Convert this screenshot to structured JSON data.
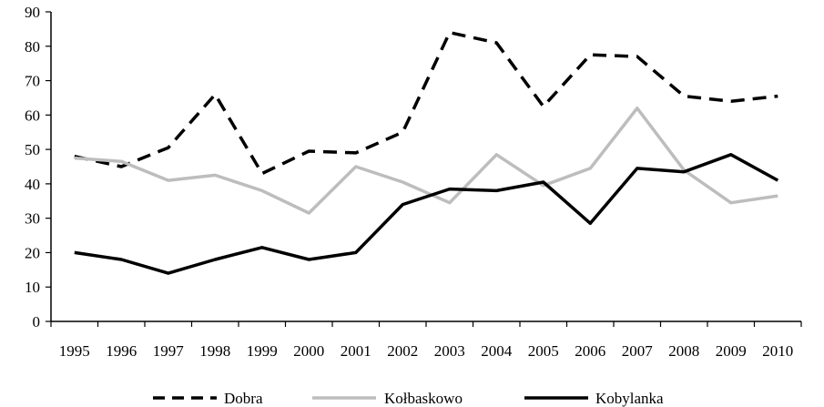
{
  "chart_data": {
    "type": "line",
    "title": "",
    "xlabel": "",
    "ylabel": "",
    "categories": [
      "1995",
      "1996",
      "1997",
      "1998",
      "1999",
      "2000",
      "2001",
      "2002",
      "2003",
      "2004",
      "2005",
      "2006",
      "2007",
      "2008",
      "2009",
      "2010"
    ],
    "y_ticks": [
      0,
      10,
      20,
      30,
      40,
      50,
      60,
      70,
      80,
      90
    ],
    "ylim": [
      0,
      90
    ],
    "grid": false,
    "legend_position": "bottom",
    "series": [
      {
        "name": "Dobra",
        "style": "dashed",
        "color": "#000000",
        "values": [
          48,
          45,
          50.5,
          66,
          43,
          49.5,
          49,
          55,
          84,
          81,
          62.5,
          77.5,
          77,
          65.5,
          64,
          65.5
        ]
      },
      {
        "name": "Kołbaskowo",
        "style": "solid",
        "color": "#bdbdbd",
        "values": [
          47.5,
          46.5,
          41,
          42.5,
          38,
          31.5,
          45,
          40.5,
          34.5,
          48.5,
          39.5,
          44.5,
          62,
          44,
          34.5,
          36.5
        ]
      },
      {
        "name": "Kobylanka",
        "style": "solid",
        "color": "#000000",
        "values": [
          20,
          18,
          14,
          18,
          21.5,
          18,
          20,
          34,
          38.5,
          38,
          40.5,
          28.5,
          44.5,
          43.5,
          48.5,
          41
        ]
      }
    ]
  }
}
